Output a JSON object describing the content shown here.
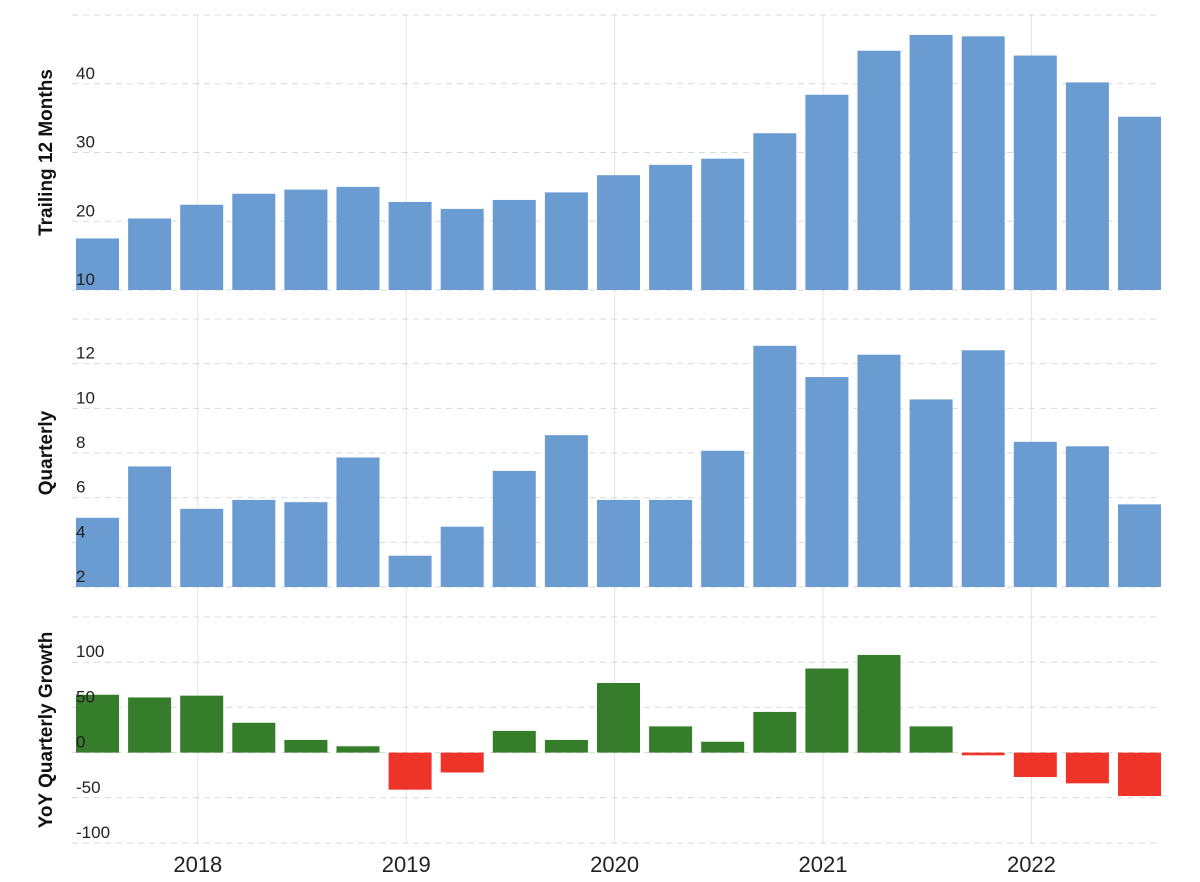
{
  "chart_data": [
    {
      "type": "bar",
      "ylabel": "Trailing 12 Months",
      "ylim": [
        10,
        50
      ],
      "yticks": [
        10,
        20,
        30,
        40
      ],
      "grid": true,
      "color": "#6a9cd2",
      "values": [
        17.5,
        20.4,
        22.4,
        24.0,
        24.6,
        25.0,
        22.8,
        21.8,
        23.1,
        24.2,
        26.7,
        28.2,
        29.1,
        32.8,
        38.4,
        44.8,
        47.1,
        46.9,
        44.1,
        40.2,
        35.2
      ]
    },
    {
      "type": "bar",
      "ylabel": "Quarterly",
      "ylim": [
        2,
        14
      ],
      "yticks": [
        2,
        4,
        6,
        8,
        10,
        12
      ],
      "grid": true,
      "color": "#6a9cd2",
      "values": [
        5.1,
        7.4,
        5.5,
        5.9,
        5.8,
        7.8,
        3.4,
        4.7,
        7.2,
        8.8,
        5.9,
        5.9,
        8.1,
        12.8,
        11.4,
        12.4,
        10.4,
        12.6,
        8.5,
        8.3,
        5.7
      ]
    },
    {
      "type": "bar",
      "ylabel": "YoY Quarterly Growth",
      "ylim": [
        -100,
        150
      ],
      "yticks": [
        -100,
        -50,
        0,
        50,
        100
      ],
      "grid": true,
      "positive_color": "#357d2a",
      "negative_color": "#ee3328",
      "values": [
        64,
        61,
        63,
        33,
        14,
        7,
        -41,
        -22,
        24,
        14,
        77,
        29,
        12,
        45,
        93,
        108,
        29,
        -3,
        -27,
        -34,
        -48
      ]
    }
  ],
  "x_axis": {
    "labels": [
      "2018",
      "2019",
      "2020",
      "2021",
      "2022"
    ],
    "label_positions_bar_index": [
      2.3,
      6.3,
      10.3,
      14.3,
      18.3
    ]
  }
}
